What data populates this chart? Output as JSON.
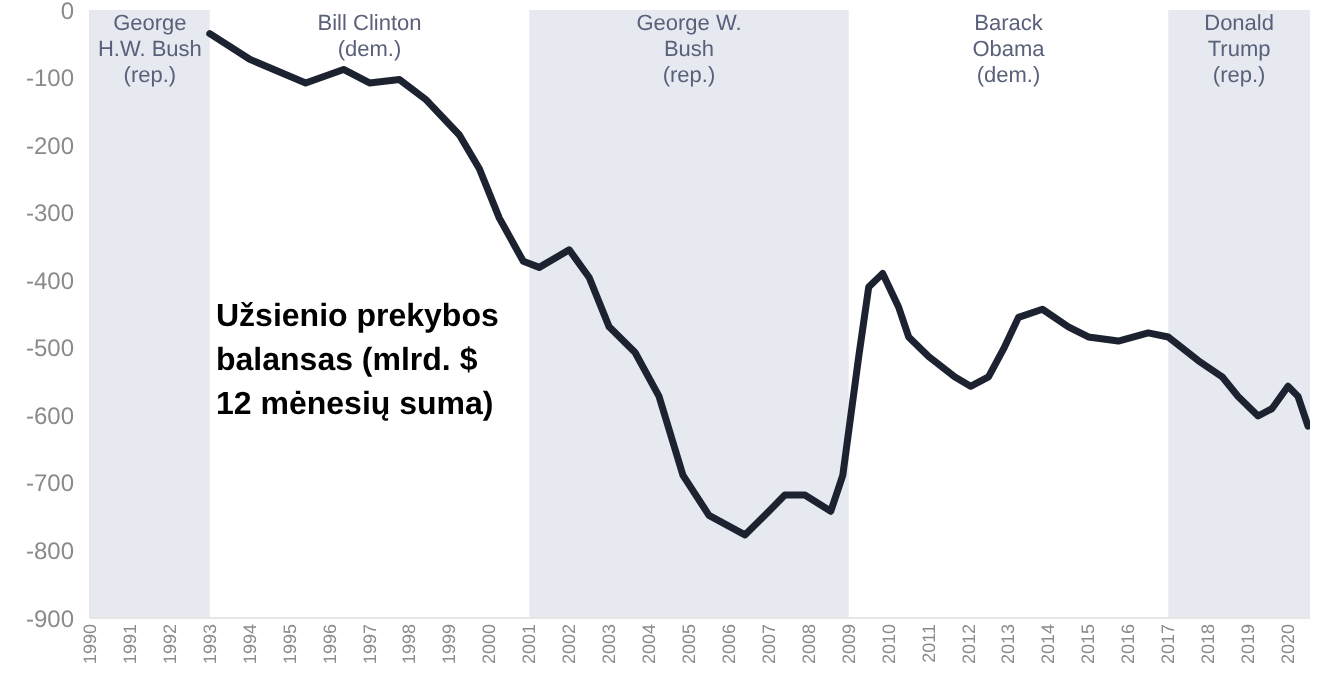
{
  "chart_data": {
    "type": "line",
    "x": [
      1993.0,
      1994.0,
      1995.4,
      1996.35,
      1997.0,
      1997.75,
      1998.4,
      1999.25,
      1999.75,
      2000.25,
      2000.85,
      2001.25,
      2002.0,
      2002.5,
      2003.0,
      2003.65,
      2004.25,
      2004.85,
      2005.5,
      2006.4,
      2006.9,
      2007.4,
      2007.9,
      2008.55,
      2008.85,
      2009.25,
      2009.5,
      2009.85,
      2010.25,
      2010.5,
      2011.0,
      2011.65,
      2012.05,
      2012.5,
      2012.9,
      2013.25,
      2013.85,
      2014.5,
      2015.0,
      2015.75,
      2016.5,
      2017.0,
      2017.75,
      2018.35,
      2018.75,
      2019.25,
      2019.6,
      2020.0,
      2020.25,
      2020.5
    ],
    "series": [
      {
        "color": "#1c2230",
        "values": [
          -35,
          -73,
          -108,
          -88,
          -108,
          -103,
          -132,
          -185,
          -235,
          -308,
          -372,
          -381,
          -355,
          -396,
          -469,
          -507,
          -572,
          -689,
          -748,
          -777,
          -748,
          -718,
          -718,
          -742,
          -689,
          -513,
          -410,
          -390,
          -440,
          -484,
          -513,
          -543,
          -557,
          -543,
          -499,
          -455,
          -443,
          -469,
          -484,
          -490,
          -478,
          -484,
          -519,
          -543,
          -572,
          -601,
          -590,
          -557,
          -572,
          -616
        ]
      }
    ],
    "xlim": [
      1990,
      2020.55
    ],
    "xticks": [
      1990,
      1991,
      1992,
      1993,
      1994,
      1995,
      1996,
      1997,
      1998,
      1999,
      2000,
      2001,
      2002,
      2003,
      2004,
      2005,
      2006,
      2007,
      2008,
      2009,
      2010,
      2011,
      2012,
      2013,
      2014,
      2015,
      2016,
      2017,
      2018,
      2019,
      2020
    ],
    "ylim": [
      -900,
      0
    ],
    "yticks": [
      -900,
      -800,
      -700,
      -600,
      -500,
      -400,
      -300,
      -200,
      -100,
      0
    ],
    "bands": [
      {
        "axis": "x",
        "from": 1990,
        "to": 1993,
        "label": "George\nH.W. Bush\n(rep.)",
        "color": "#e6e9f0"
      },
      {
        "axis": "x",
        "from": 2001,
        "to": 2009,
        "label": "George W.\nBush\n(rep.)",
        "color": "#e6e9f0"
      },
      {
        "axis": "x",
        "from": 2017,
        "to": 2020.55,
        "label": "Donald\nTrump\n(rep.)",
        "color": "#e6e9f0"
      }
    ],
    "annotations": [
      "Užsienio prekybos balansas (mlrd. $ 12 mėnesių suma)",
      "Bill Clinton\n(dem.)",
      "Barack\nObama\n(dem.)"
    ],
    "grid": false,
    "legend": false,
    "marker": "none",
    "line_style": "solid"
  }
}
